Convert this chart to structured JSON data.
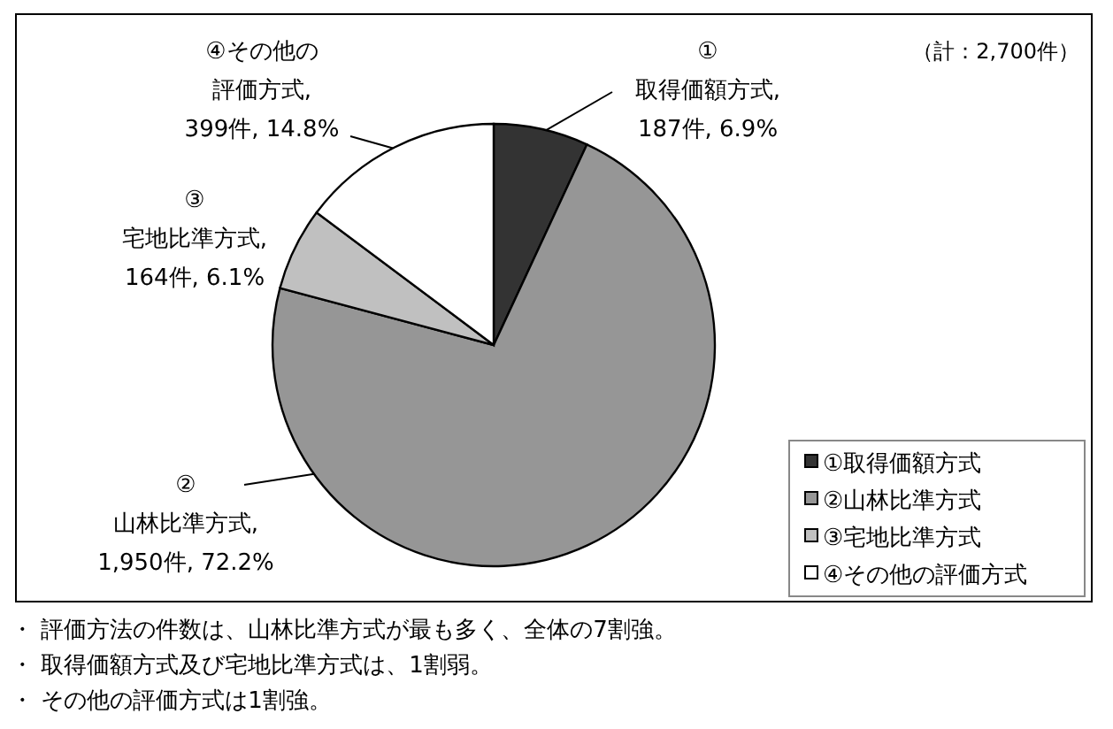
{
  "chart_data": {
    "type": "pie",
    "categories": [
      "①取得価額方式",
      "②山林比準方式",
      "③宅地比準方式",
      "④その他の評価方式"
    ],
    "values": [
      187,
      1950,
      164,
      399
    ],
    "colors": [
      "#333333",
      "#969696",
      "#c0c0c0",
      "#ffffff"
    ],
    "value_labels": [
      "①\n取得価額方式,\n187件, 6.9%",
      "②\n山林比準方式,\n1,950件, 72.2%",
      "③\n宅地比準方式,\n164件, 6.1%",
      "④その他の評価方式,\n399件, 14.8%"
    ],
    "legend": "bottom right",
    "annotations": [
      "（計：2,700件）",
      "・ 評価方法の件数は、山林比準方式が最も多く、全体の7割強。",
      "・ 取得価額方式及び宅地比準方式は、1割弱。",
      "・ その他の評価方式は1割強。"
    ]
  }
}
